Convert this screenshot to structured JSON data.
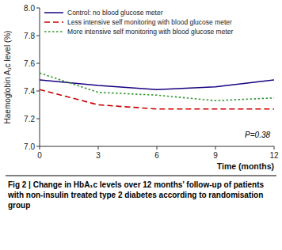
{
  "chart_data": {
    "type": "line",
    "x": [
      0,
      3,
      6,
      9,
      12
    ],
    "series": [
      {
        "name": "Control: no blood glucose meter",
        "color": "#1a0080",
        "line_style": "solid",
        "values": [
          7.48,
          7.44,
          7.41,
          7.43,
          7.48
        ]
      },
      {
        "name": "Less intensive self monitoring with blood glucose meter",
        "color": "#cc0000",
        "line_style": "dashed",
        "values": [
          7.41,
          7.3,
          7.27,
          7.27,
          7.27
        ]
      },
      {
        "name": "More intensive self monitoring with blood glucose meter",
        "color": "#339933",
        "line_style": "dotted",
        "values": [
          7.53,
          7.39,
          7.37,
          7.33,
          7.35
        ]
      }
    ],
    "xlim": [
      0,
      12
    ],
    "ylim": [
      7.0,
      8.0
    ],
    "xticks": [
      0,
      3,
      6,
      9,
      12
    ],
    "yticks": [
      {
        "value": 7.0,
        "label": "7.0"
      },
      {
        "value": 7.2,
        "label": "7.2"
      },
      {
        "value": 7.4,
        "label": "7.4"
      },
      {
        "value": 7.6,
        "label": "7.6"
      },
      {
        "value": 7.8,
        "label": "7.8"
      },
      {
        "value": 8.0,
        "label": "8.0"
      }
    ],
    "y_label": "Haemoglobin A₁c level (%)",
    "x_label": "Time (months)",
    "annotations": [
      {
        "text": "P=0.38",
        "x": 11.8,
        "y": 7.05
      }
    ],
    "caption": "Fig 2 | Change in HbA₁c levels over 12 months’ follow-up of patients with non-insulin treated type 2 diabetes according to randomisation group",
    "legend": "upper-left",
    "grid": false
  }
}
